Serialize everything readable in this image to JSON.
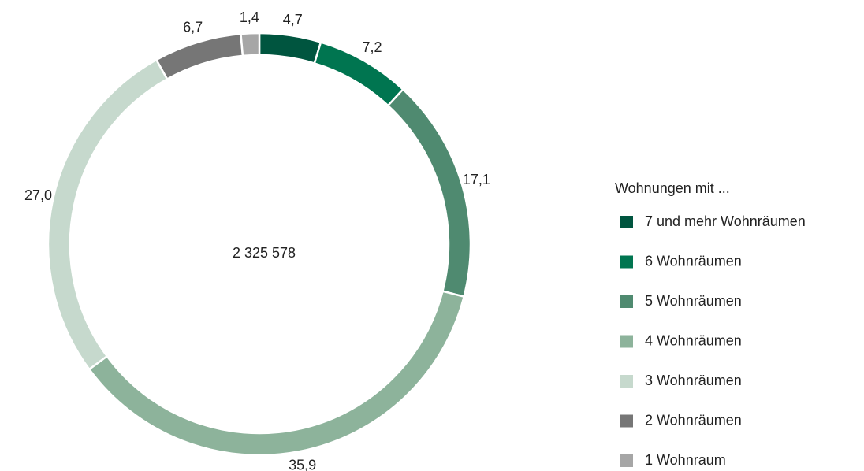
{
  "chart_data": {
    "type": "donut",
    "center_label": "2 325 578",
    "legend_title": "Wohnungen mit ...",
    "categories": [
      "7 und mehr Wohnräumen",
      "6 Wohnräumen",
      "5 Wohnräumen",
      "4 Wohnräumen",
      "3 Wohnräumen",
      "2 Wohnräumen",
      "1 Wohnraum"
    ],
    "values": [
      4.7,
      7.2,
      17.1,
      35.9,
      27.0,
      6.7,
      1.4
    ],
    "value_labels": [
      "4,7",
      "7,2",
      "17,1",
      "35,9",
      "27,0",
      "6,7",
      "1,4"
    ],
    "colors": [
      "#00553f",
      "#007550",
      "#4f8a70",
      "#8db39b",
      "#c6d9cd",
      "#767676",
      "#a6a6a6"
    ],
    "legend": "right"
  }
}
